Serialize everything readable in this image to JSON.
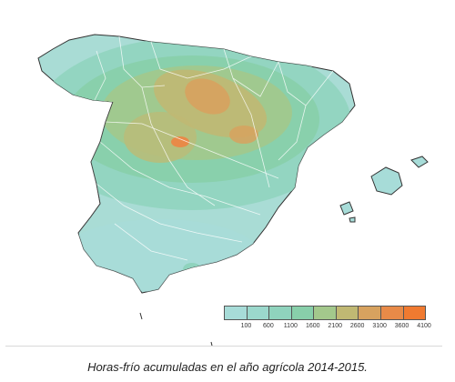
{
  "caption": "Horas-frío acumuladas en el año agrícola 2014-2015.",
  "legend": {
    "labels": [
      "100",
      "600",
      "1100",
      "1600",
      "2100",
      "2600",
      "3100",
      "3600",
      "4100"
    ],
    "colors": [
      "#a7dcd8",
      "#9bd8cc",
      "#8fd3bd",
      "#88cfaa",
      "#a3c88c",
      "#c0b873",
      "#d7a25f",
      "#e88a48",
      "#f07a30"
    ]
  }
}
